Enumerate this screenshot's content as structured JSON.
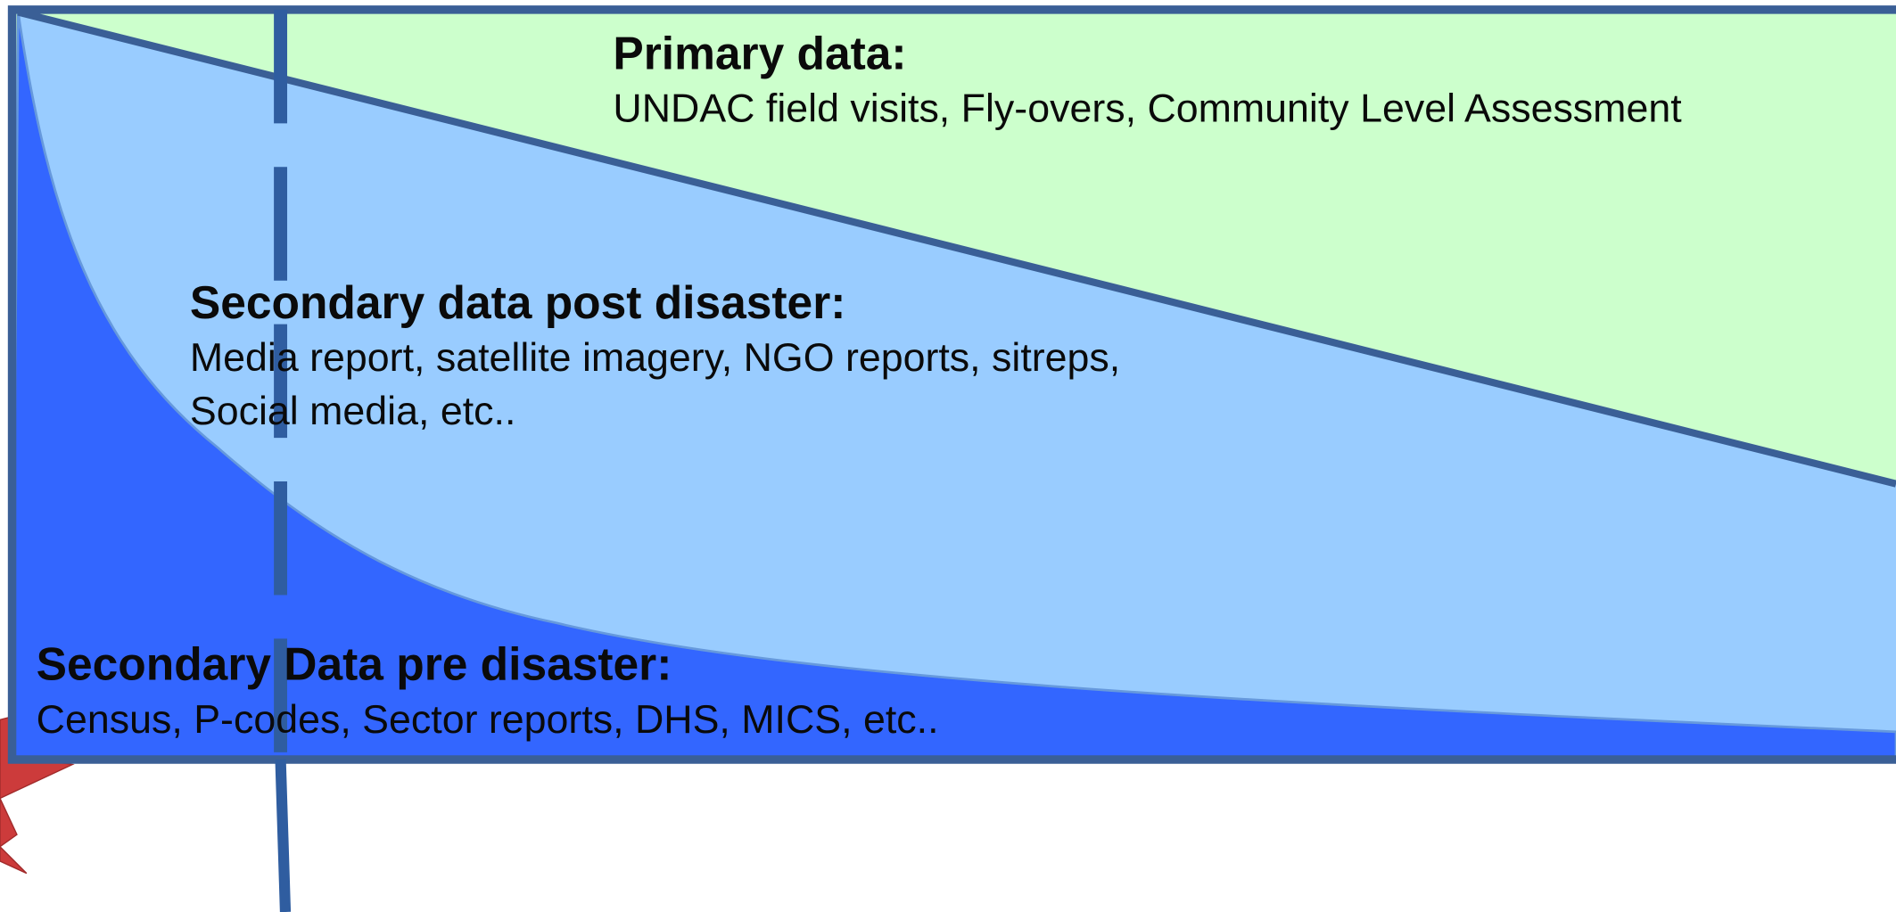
{
  "primary": {
    "title": "Primary data:",
    "detail": "UNDAC field visits, Fly-overs, Community Level Assessment"
  },
  "post_disaster": {
    "title": "Secondary data post disaster:",
    "lines": [
      "Media report, satellite imagery, NGO reports, sitreps,",
      "Social media, etc.."
    ]
  },
  "pre_disaster": {
    "title": "Secondary Data pre disaster:",
    "detail": "Census, P-codes, Sector reports, DHS, MICS, etc.."
  }
}
